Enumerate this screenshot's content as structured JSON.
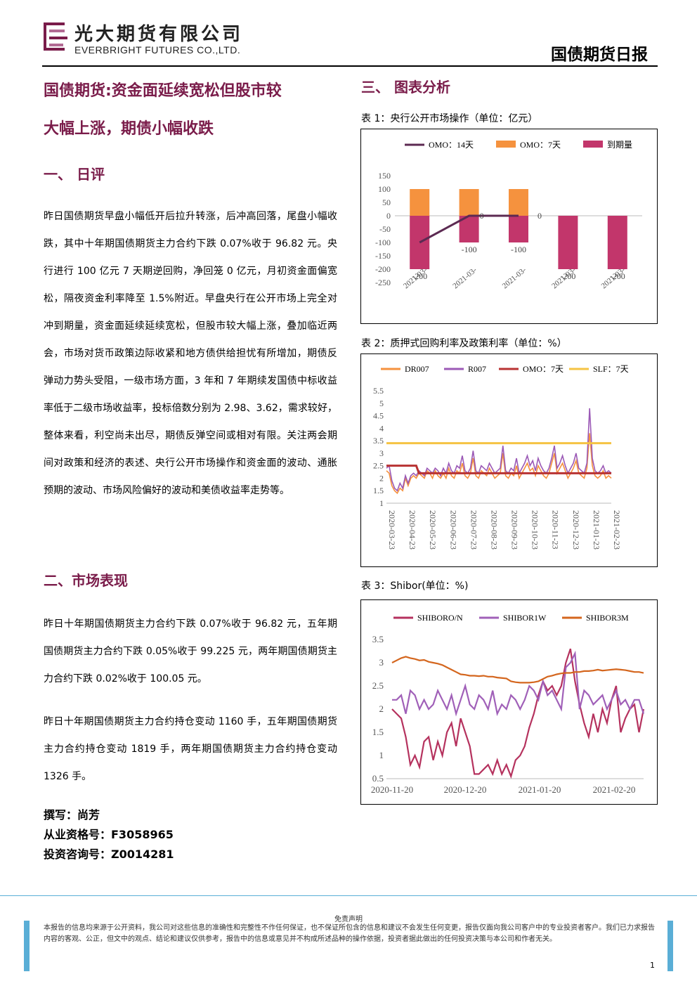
{
  "header": {
    "company_cn": "光大期货有限公司",
    "company_en": "EVERBRIGHT FUTURES CO.,LTD.",
    "report_type": "国债期货日报",
    "colors": {
      "brand": "#7a1c4a",
      "accent": "#5aaed6"
    }
  },
  "headline": {
    "line1": "国债期货:资金面延续宽松但股市较",
    "line2": "大幅上涨，期债小幅收跌"
  },
  "sections": {
    "review": {
      "title": "一、  日评",
      "text": "昨日国债期货早盘小幅低开后拉升转涨，后冲高回落，尾盘小幅收跌，其中十年期国债期货主力合约下跌 0.07%收于 96.82 元。央行进行 100 亿元 7 天期逆回购，净回笼 0 亿元，月初资金面偏宽松，隔夜资金利率降至 1.5%附近。早盘央行在公开市场上完全对冲到期量，资金面延续延续宽松，但股市较大幅上涨，叠加临近两会，市场对货币政策边际收紧和地方债供给担忧有所增加，期债反弹动力势头受阻，一级市场方面，3 年和 7 年期续发国债中标收益率低于二级市场收益率，投标倍数分别为 2.98、3.62，需求较好，整体来看，利空尚未出尽，期债反弹空间或相对有限。关注两会期间对政策和经济的表述、央行公开市场操作和资金面的波动、通胀预期的波动、市场风险偏好的波动和美债收益率走势等。"
    },
    "market": {
      "title": "二、市场表现",
      "text1": "昨日十年期国债期货主力合约下跌 0.07%收于 96.82 元，五年期国债期货主力合约下跌 0.05%收于 99.225 元，两年期国债期货主力合约下跌 0.02%收于 100.05 元。",
      "text2": "昨日十年期国债期货主力合约持仓变动 1160 手，五年期国债期货主力合约持仓变动 1819 手，两年期国债期货主力合约持仓变动 1326 手。"
    },
    "charts_title": "三、  图表分析"
  },
  "author": {
    "writer": "撰写：尚芳",
    "qualification": "从业资格号：F3058965",
    "consulting": "投资咨询号：Z0014281"
  },
  "chart_data": [
    {
      "caption": "表 1：央行公开市场操作（单位：亿元）",
      "type": "bar",
      "categories": [
        "2021-03-",
        "2021-03-",
        "2021-03-",
        "2021-03-",
        "2021-03-"
      ],
      "series": [
        {
          "name": "OMO：14天",
          "type": "line",
          "color": "#5c2a52",
          "values": [
            -100,
            0,
            0,
            null,
            null
          ]
        },
        {
          "name": "OMO：7天",
          "type": "bar",
          "color": "#f5923e",
          "values": [
            100,
            100,
            100,
            0,
            0
          ]
        },
        {
          "name": "到期量",
          "type": "bar",
          "color": "#c2366b",
          "values": [
            -200,
            -100,
            -100,
            -200,
            -200
          ]
        }
      ],
      "data_labels": [
        "-200",
        "-100",
        "-100",
        "-200",
        "-200"
      ],
      "zero_labels": [
        "0",
        "0"
      ],
      "yticks": [
        "150",
        "100",
        "50",
        "0",
        "-50",
        "-100",
        "-150",
        "-200",
        "-250"
      ],
      "ylim": [
        -250,
        150
      ],
      "legend": "top"
    },
    {
      "caption": "表 2：质押式回购利率及政策利率（单位：%）",
      "type": "line",
      "xticks": [
        "2020-03-23",
        "2020-04-23",
        "2020-05-23",
        "2020-06-23",
        "2020-07-23",
        "2020-08-23",
        "2020-09-23",
        "2020-10-23",
        "2020-11-23",
        "2020-12-23",
        "2021-01-23",
        "2021-02-23"
      ],
      "yticks": [
        "5.5",
        "5",
        "4.5",
        "4",
        "3.5",
        "3",
        "2.5",
        "2",
        "1.5",
        "1"
      ],
      "ylim": [
        1,
        5.5
      ],
      "series": [
        {
          "name": "DR007",
          "color": "#f5923e",
          "values": [
            2.3,
            2.2,
            1.7,
            1.5,
            1.4,
            1.6,
            1.5,
            2.0,
            1.7,
            2.0,
            2.1,
            2.0,
            2.2,
            2.1,
            2.0,
            2.3,
            2.2,
            2.0,
            2.3,
            2.1,
            2.0,
            2.2,
            2.0,
            2.4,
            2.1,
            2.0,
            2.3,
            2.2,
            2.6,
            2.1,
            2.0,
            2.2,
            2.8,
            2.1,
            2.0,
            2.3,
            2.2,
            2.1,
            2.4,
            2.2,
            2.0,
            2.1,
            2.2,
            3.0,
            2.1,
            2.0,
            2.2,
            2.1,
            2.5,
            2.0,
            2.2,
            2.4,
            2.6,
            2.3,
            2.4,
            2.1,
            2.5,
            2.3,
            2.1,
            2.0,
            2.2,
            2.6,
            3.0,
            2.2,
            2.4,
            2.6,
            2.3,
            2.0,
            2.2,
            2.4,
            2.7,
            2.2,
            2.1,
            2.0,
            2.4,
            3.8,
            2.5,
            2.1,
            2.0,
            2.1,
            2.3,
            2.0,
            2.1,
            2.0
          ]
        },
        {
          "name": "R007",
          "color": "#9b59b6",
          "values": [
            2.4,
            2.5,
            1.9,
            1.6,
            1.5,
            1.8,
            1.6,
            2.1,
            1.8,
            2.1,
            2.2,
            2.1,
            2.3,
            2.2,
            2.1,
            2.4,
            2.3,
            2.2,
            2.4,
            2.3,
            2.1,
            2.4,
            2.2,
            2.6,
            2.3,
            2.2,
            2.5,
            2.4,
            2.9,
            2.3,
            2.2,
            2.4,
            3.1,
            2.3,
            2.2,
            2.5,
            2.4,
            2.3,
            2.6,
            2.4,
            2.2,
            2.3,
            2.4,
            3.3,
            2.3,
            2.2,
            2.4,
            2.3,
            2.8,
            2.2,
            2.4,
            2.6,
            2.9,
            2.5,
            2.7,
            2.3,
            2.8,
            2.5,
            2.3,
            2.2,
            2.4,
            2.8,
            3.3,
            2.4,
            2.6,
            2.9,
            2.5,
            2.2,
            2.4,
            2.6,
            3.0,
            2.4,
            2.3,
            2.2,
            2.6,
            4.8,
            2.8,
            2.3,
            2.2,
            2.3,
            2.5,
            2.2,
            2.3,
            2.2
          ]
        },
        {
          "name": "OMO：7天",
          "color": "#b83232",
          "values": [
            2.5,
            2.5,
            2.5,
            2.5,
            2.5,
            2.5,
            2.5,
            2.5,
            2.5,
            2.5,
            2.5,
            2.5,
            2.2,
            2.2,
            2.2,
            2.2,
            2.2,
            2.2,
            2.2,
            2.2,
            2.2,
            2.2,
            2.2,
            2.2,
            2.2,
            2.2,
            2.2,
            2.2,
            2.2,
            2.2,
            2.2,
            2.2,
            2.2,
            2.2,
            2.2,
            2.2,
            2.2,
            2.2,
            2.2,
            2.2,
            2.2,
            2.2,
            2.2,
            2.2,
            2.2,
            2.2,
            2.2,
            2.2,
            2.2,
            2.2,
            2.2,
            2.2,
            2.2,
            2.2,
            2.2,
            2.2,
            2.2,
            2.2,
            2.2,
            2.2,
            2.2,
            2.2,
            2.2,
            2.2,
            2.2,
            2.2,
            2.2,
            2.2,
            2.2,
            2.2,
            2.2,
            2.2,
            2.2,
            2.2,
            2.2,
            2.2,
            2.2,
            2.2,
            2.2,
            2.2,
            2.2,
            2.2,
            2.2,
            2.2
          ]
        },
        {
          "name": "SLF：7天",
          "color": "#f5c343",
          "values": [
            3.4,
            3.4
          ]
        }
      ],
      "legend": "top"
    },
    {
      "caption": "表 3：Shibor(单位：%)",
      "type": "line",
      "xticks": [
        "2020-11-20",
        "2020-12-20",
        "2021-01-20",
        "2021-02-20"
      ],
      "yticks": [
        "3.5",
        "3",
        "2.5",
        "2",
        "1.5",
        "1",
        "0.5"
      ],
      "ylim": [
        0.5,
        3.5
      ],
      "series": [
        {
          "name": "SHIBORO/N",
          "color": "#b5325e",
          "values": [
            2.0,
            1.9,
            1.8,
            1.4,
            0.8,
            1.0,
            0.75,
            1.3,
            1.4,
            0.9,
            1.3,
            1.0,
            1.5,
            1.7,
            1.2,
            1.8,
            1.5,
            1.2,
            0.6,
            0.6,
            0.7,
            0.8,
            0.6,
            0.9,
            0.6,
            0.8,
            0.55,
            0.9,
            1.0,
            1.2,
            1.6,
            1.9,
            2.3,
            2.6,
            2.4,
            2.5,
            2.3,
            2.5,
            3.0,
            3.3,
            2.6,
            2.1,
            1.7,
            1.4,
            1.9,
            1.5,
            2.0,
            1.7,
            2.2,
            2.5,
            1.5,
            1.8,
            2.0,
            2.1,
            1.5,
            2.0
          ]
        },
        {
          "name": "SHIBOR1W",
          "color": "#a060b8",
          "values": [
            2.2,
            2.2,
            2.3,
            1.9,
            2.4,
            2.3,
            2.0,
            2.2,
            2.0,
            2.1,
            2.4,
            2.2,
            2.0,
            2.3,
            1.9,
            2.2,
            2.5,
            2.1,
            2.0,
            2.3,
            2.2,
            2.0,
            2.4,
            1.9,
            2.1,
            2.0,
            2.3,
            2.2,
            2.0,
            2.2,
            2.5,
            2.4,
            2.2,
            2.6,
            2.3,
            2.4,
            2.2,
            2.0,
            2.9,
            3.0,
            3.2,
            2.0,
            2.4,
            2.3,
            2.1,
            2.2,
            2.3,
            2.0,
            2.2,
            2.4,
            2.1,
            2.2,
            2.0,
            2.2,
            2.2,
            1.9
          ]
        },
        {
          "name": "SHIBOR3M",
          "color": "#d4661e",
          "values": [
            3.0,
            3.05,
            3.1,
            3.13,
            3.1,
            3.08,
            3.05,
            3.06,
            3.02,
            3.0,
            2.98,
            2.95,
            2.9,
            2.85,
            2.8,
            2.75,
            2.74,
            2.72,
            2.72,
            2.71,
            2.72,
            2.7,
            2.7,
            2.68,
            2.67,
            2.66,
            2.6,
            2.58,
            2.57,
            2.57,
            2.57,
            2.58,
            2.6,
            2.65,
            2.7,
            2.72,
            2.75,
            2.77,
            2.78,
            2.78,
            2.8,
            2.8,
            2.82,
            2.82,
            2.83,
            2.85,
            2.83,
            2.84,
            2.85,
            2.86,
            2.85,
            2.84,
            2.82,
            2.8,
            2.8,
            2.78
          ]
        }
      ],
      "legend": "top"
    }
  ],
  "footer": {
    "title": "免责声明",
    "text": "本报告的信息均来源于公开资料，我公司对这些信息的准确性和完整性不作任何保证，也不保证所包含的信息和建议不会发生任何变更，报告仅面向我公司客户中的专业投资者客户。我们已力求报告内容的客观、公正，但文中的观点、结论和建议仅供参考，报告中的信息或意见并不构成所述品种的操作依据，投资者据此做出的任何投资决策与本公司和作者无关。",
    "page": "1"
  }
}
